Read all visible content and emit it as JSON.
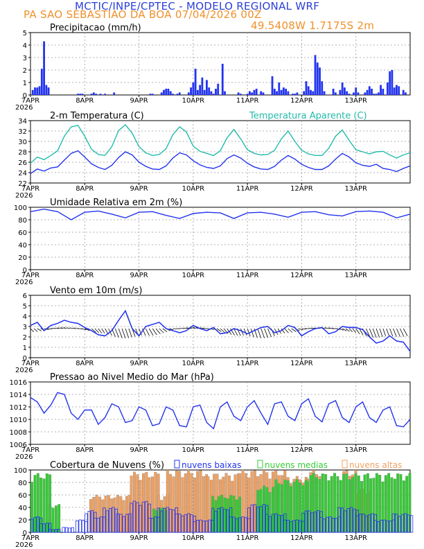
{
  "header": {
    "title": "MCTIC/INPE/CPTEC - MODELO REGIONAL WRF",
    "location_date": "PA SAO SEBASTIAO DA BOA   07/04/2026 00Z",
    "coords": "49.5408W  1.7175S  2m"
  },
  "x_axis": {
    "labels": [
      "7APR",
      "8APR",
      "9APR",
      "10APR",
      "11APR",
      "12APR",
      "13APR"
    ],
    "year": "2026",
    "hours_total": 168
  },
  "colors": {
    "blue": "#2233ee",
    "cyan": "#22bbaa",
    "orange": "#f0a060",
    "green": "#33cc33",
    "black": "#000000",
    "grid": "#999999"
  },
  "chart_data": [
    {
      "type": "bar",
      "id": "precip",
      "title": "Precipitacao (mm/h)",
      "ylim": [
        0,
        5
      ],
      "yticks": [
        "0",
        "1",
        "2",
        "3",
        "4",
        "5"
      ],
      "x_hours": [
        1,
        2,
        3,
        4,
        5,
        6,
        7,
        8,
        21,
        22,
        23,
        27,
        28,
        29,
        31,
        33,
        37,
        53,
        54,
        58,
        59,
        60,
        61,
        62,
        63,
        65,
        66,
        70,
        71,
        72,
        73,
        74,
        75,
        76,
        77,
        78,
        79,
        80,
        81,
        82,
        83,
        85,
        86,
        92,
        93,
        96,
        97,
        98,
        99,
        100,
        102,
        103,
        107,
        108,
        109,
        110,
        111,
        112,
        113,
        114,
        116,
        117,
        118,
        121,
        122,
        123,
        124,
        125,
        126,
        127,
        128,
        129,
        130,
        134,
        135,
        137,
        138,
        139,
        140,
        141,
        143,
        144,
        145,
        148,
        149,
        150,
        151,
        152,
        153,
        154,
        155,
        156,
        158,
        159,
        160,
        161,
        162,
        163,
        165,
        166
      ],
      "values": [
        0.4,
        0.6,
        0.6,
        0.7,
        2.1,
        4.3,
        0.8,
        0.6,
        0.1,
        0.1,
        0.1,
        0.1,
        0.2,
        0.1,
        0.1,
        0.1,
        0.2,
        0.1,
        0.1,
        0.2,
        0.4,
        0.5,
        0.5,
        0.3,
        0.1,
        0.1,
        0.2,
        0.2,
        0.6,
        1.0,
        2.1,
        0.4,
        0.8,
        1.4,
        0.4,
        1.2,
        0.6,
        0.3,
        0.1,
        0.5,
        0.9,
        2.5,
        0.3,
        0.2,
        0.1,
        0.1,
        0.3,
        0.2,
        0.4,
        0.5,
        0.3,
        0.2,
        1.5,
        0.5,
        0.3,
        1.0,
        0.4,
        0.6,
        0.5,
        0.3,
        0.1,
        0.1,
        0.2,
        0.3,
        1.1,
        0.7,
        0.4,
        0.3,
        3.2,
        2.6,
        2.2,
        1.1,
        0.3,
        0.5,
        0.2,
        0.4,
        1.0,
        0.6,
        0.3,
        0.1,
        0.2,
        0.6,
        0.2,
        0.2,
        0.4,
        0.7,
        0.5,
        0.1,
        0.1,
        0.2,
        0.8,
        0.5,
        1.0,
        1.9,
        2.0,
        0.6,
        0.8,
        0.7,
        0.4,
        0.2
      ]
    },
    {
      "type": "line",
      "id": "temperature",
      "title": "2-m Temperatura (C)",
      "legend": "Temperatura Aparente (C)",
      "ylim": [
        22,
        34
      ],
      "yticks": [
        "22",
        "24",
        "26",
        "28",
        "30",
        "32",
        "34"
      ],
      "x": [
        0,
        3,
        6,
        9,
        12,
        15,
        18,
        21,
        24,
        27,
        30,
        33,
        36,
        39,
        42,
        45,
        48,
        51,
        54,
        57,
        60,
        63,
        66,
        69,
        72,
        75,
        78,
        81,
        84,
        87,
        90,
        93,
        96,
        99,
        102,
        105,
        108,
        111,
        114,
        117,
        120,
        123,
        126,
        129,
        132,
        135,
        138,
        141,
        144,
        147,
        150,
        153,
        156,
        159,
        162,
        165,
        168
      ],
      "series": [
        {
          "name": "2-m Temperatura",
          "color": "blue",
          "values": [
            23.8,
            24.7,
            24.3,
            24.9,
            25.1,
            26.4,
            27.7,
            28.2,
            27.0,
            25.7,
            25.0,
            24.6,
            25.4,
            26.9,
            28.0,
            27.4,
            26.0,
            25.2,
            24.7,
            24.6,
            25.3,
            26.8,
            27.8,
            27.4,
            26.3,
            25.5,
            25.0,
            24.8,
            25.3,
            26.7,
            27.4,
            26.8,
            25.8,
            25.1,
            24.7,
            24.6,
            25.2,
            26.4,
            27.3,
            26.6,
            25.6,
            25.0,
            24.6,
            24.6,
            25.3,
            26.6,
            27.7,
            27.0,
            25.9,
            25.4,
            25.2,
            25.6,
            24.8,
            24.6,
            24.2,
            24.8,
            25.3
          ]
        },
        {
          "name": "Temperatura Aparente",
          "color": "cyan",
          "values": [
            25.8,
            27.0,
            26.5,
            27.3,
            28.2,
            31.0,
            32.8,
            33.1,
            31.0,
            28.5,
            27.5,
            27.3,
            29.0,
            32.1,
            33.2,
            31.6,
            29.0,
            27.8,
            27.3,
            27.5,
            28.6,
            31.3,
            32.8,
            31.8,
            29.1,
            28.1,
            27.7,
            27.3,
            28.2,
            30.7,
            32.3,
            30.5,
            28.4,
            27.7,
            27.4,
            27.5,
            28.3,
            30.5,
            32.0,
            30.0,
            28.3,
            27.6,
            27.3,
            27.3,
            28.7,
            31.0,
            32.2,
            30.2,
            28.4,
            28.0,
            27.6,
            28.0,
            28.1,
            27.4,
            26.8,
            27.4,
            27.8
          ]
        }
      ]
    },
    {
      "type": "line",
      "id": "humidity",
      "title": "Umidade Relativa em 2m (%)",
      "ylim": [
        0,
        100
      ],
      "yticks": [
        "0",
        "20",
        "40",
        "60",
        "80",
        "100"
      ],
      "x": [
        0,
        6,
        12,
        18,
        24,
        30,
        36,
        42,
        48,
        54,
        60,
        66,
        72,
        78,
        84,
        90,
        96,
        102,
        108,
        114,
        120,
        126,
        132,
        138,
        144,
        150,
        156,
        162,
        168
      ],
      "series": [
        {
          "name": "Umidade Relativa",
          "color": "blue",
          "values": [
            93,
            97,
            93,
            80,
            92,
            94,
            89,
            83,
            92,
            93,
            87,
            82,
            90,
            92,
            91,
            82,
            91,
            92,
            89,
            84,
            92,
            93,
            88,
            86,
            93,
            94,
            92,
            83,
            89
          ]
        }
      ]
    },
    {
      "type": "line",
      "id": "wind",
      "title": "Vento em 10m (m/s)",
      "ylim": [
        0,
        6
      ],
      "yticks": [
        "0",
        "1",
        "2",
        "3",
        "4",
        "5",
        "6"
      ],
      "note": "black arrows = wind direction barbs along speed line",
      "x": [
        0,
        3,
        6,
        9,
        12,
        15,
        18,
        21,
        24,
        27,
        30,
        33,
        36,
        39,
        42,
        45,
        48,
        51,
        54,
        57,
        60,
        63,
        66,
        69,
        72,
        75,
        78,
        81,
        84,
        87,
        90,
        93,
        96,
        99,
        102,
        105,
        108,
        111,
        114,
        117,
        120,
        123,
        126,
        129,
        132,
        135,
        138,
        141,
        144,
        147,
        150,
        153,
        156,
        159,
        162,
        165,
        168
      ],
      "series": [
        {
          "name": "Vento 10m",
          "color": "blue",
          "values": [
            3.1,
            3.4,
            2.6,
            3.1,
            3.3,
            3.6,
            3.4,
            3.3,
            2.9,
            2.6,
            2.2,
            2.1,
            2.6,
            3.6,
            4.5,
            2.8,
            2.1,
            3.0,
            3.2,
            3.4,
            2.8,
            2.6,
            2.4,
            2.6,
            3.1,
            2.8,
            2.6,
            2.9,
            2.3,
            2.4,
            2.8,
            2.6,
            2.3,
            2.6,
            2.9,
            3.0,
            2.4,
            2.6,
            3.1,
            2.9,
            2.1,
            2.5,
            2.8,
            2.9,
            2.3,
            2.5,
            3.0,
            2.9,
            2.9,
            2.7,
            2.0,
            1.4,
            1.6,
            2.1,
            1.6,
            1.5,
            0.6
          ]
        }
      ]
    },
    {
      "type": "line",
      "id": "pressure",
      "title": "Pressao ao Nivel Medio do Mar (hPa)",
      "ylim": [
        1006,
        1016
      ],
      "yticks": [
        "1006",
        "1008",
        "1010",
        "1012",
        "1014",
        "1016"
      ],
      "x": [
        0,
        3,
        6,
        9,
        12,
        15,
        18,
        21,
        24,
        27,
        30,
        33,
        36,
        39,
        42,
        45,
        48,
        51,
        54,
        57,
        60,
        63,
        66,
        69,
        72,
        75,
        78,
        81,
        84,
        87,
        90,
        93,
        96,
        99,
        102,
        105,
        108,
        111,
        114,
        117,
        120,
        123,
        126,
        129,
        132,
        135,
        138,
        141,
        144,
        147,
        150,
        153,
        156,
        159,
        162,
        165,
        168
      ],
      "series": [
        {
          "name": "Pressao",
          "color": "blue",
          "values": [
            1013.5,
            1012.8,
            1011.0,
            1012.3,
            1014.3,
            1014.0,
            1011.0,
            1010.0,
            1011.5,
            1011.5,
            1009.2,
            1010.3,
            1012.5,
            1012.0,
            1009.5,
            1009.8,
            1012.0,
            1011.5,
            1009.0,
            1009.3,
            1012.0,
            1011.5,
            1009.0,
            1008.8,
            1012.0,
            1012.3,
            1009.5,
            1008.5,
            1012.0,
            1012.8,
            1010.5,
            1009.8,
            1012.0,
            1013.0,
            1011.0,
            1009.2,
            1012.5,
            1012.8,
            1010.5,
            1009.8,
            1012.5,
            1013.3,
            1010.5,
            1009.6,
            1012.5,
            1013.0,
            1010.3,
            1009.5,
            1012.0,
            1012.8,
            1010.3,
            1009.5,
            1011.5,
            1012.0,
            1009.0,
            1008.8,
            1010.0
          ]
        }
      ]
    },
    {
      "type": "bar",
      "id": "clouds",
      "title": "Cobertura de Nuvens (%)",
      "legend": [
        "nuvens baixas",
        "nuvens medias",
        "nuvens altas"
      ],
      "ylim": [
        0,
        100
      ],
      "yticks": [
        "0",
        "20",
        "40",
        "60",
        "80",
        "100"
      ],
      "series": [
        {
          "name": "nuvens altas",
          "color": "orange",
          "segments_hours": [
            [
              26,
              44,
              60
            ],
            [
              44,
              56,
              97
            ],
            [
              56,
              60,
              60
            ],
            [
              60,
              78,
              100
            ],
            [
              78,
              92,
              95
            ],
            [
              92,
              112,
              100
            ],
            [
              112,
              122,
              90
            ],
            [
              122,
              128,
              100
            ],
            [
              138,
              144,
              100
            ],
            [
              144,
              150,
              70
            ]
          ]
        },
        {
          "name": "nuvens medias",
          "color": "green",
          "segments_hours": [
            [
              0,
              8,
              95
            ],
            [
              8,
              12,
              45
            ],
            [
              54,
              60,
              40
            ],
            [
              80,
              92,
              60
            ],
            [
              100,
              108,
              75
            ],
            [
              108,
              122,
              85
            ],
            [
              122,
              168,
              95
            ]
          ]
        },
        {
          "name": "nuvens baixas",
          "color": "blue",
          "segments_hours": [
            [
              0,
              4,
              25
            ],
            [
              4,
              8,
              15
            ],
            [
              8,
              12,
              5
            ],
            [
              14,
              18,
              8
            ],
            [
              20,
              24,
              20
            ],
            [
              24,
              28,
              35
            ],
            [
              28,
              32,
              25
            ],
            [
              32,
              38,
              40
            ],
            [
              38,
              44,
              30
            ],
            [
              44,
              52,
              50
            ],
            [
              52,
              56,
              25
            ],
            [
              56,
              64,
              40
            ],
            [
              64,
              72,
              30
            ],
            [
              72,
              80,
              20
            ],
            [
              80,
              88,
              40
            ],
            [
              88,
              96,
              25
            ],
            [
              96,
              104,
              45
            ],
            [
              104,
              112,
              30
            ],
            [
              112,
              120,
              20
            ],
            [
              120,
              128,
              35
            ],
            [
              128,
              136,
              25
            ],
            [
              136,
              144,
              40
            ],
            [
              144,
              152,
              30
            ],
            [
              152,
              160,
              20
            ],
            [
              160,
              168,
              30
            ]
          ]
        }
      ]
    }
  ]
}
